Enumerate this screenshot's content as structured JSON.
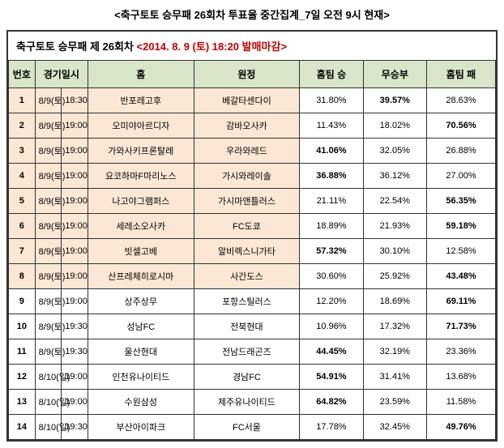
{
  "main_title": "<축구토토 승무패 26회차 투표율 중간집계_7일 오전 9시 현재>",
  "sub_title_prefix": "축구토토 승무패 제 26회차 ",
  "sub_title_deadline": "<2014. 8. 9 (토) 18:20 발매마감>",
  "headers": {
    "num": "번호",
    "datetime": "경기일시",
    "home": "홈",
    "away": "원정",
    "win": "홈팀 승",
    "draw": "무승부",
    "lose": "홈팀 패"
  },
  "rows": [
    {
      "num": "1",
      "date": "8/9(토)",
      "time": "18:30",
      "home": "반포레고후",
      "away": "베갈타센다이",
      "win": "31.80%",
      "draw": "39.57%",
      "lose": "28.63%",
      "bold": "draw",
      "highlighted": true
    },
    {
      "num": "2",
      "date": "8/9(토)",
      "time": "19:00",
      "home": "오미야아르디자",
      "away": "감바오사카",
      "win": "11.43%",
      "draw": "18.02%",
      "lose": "70.56%",
      "bold": "lose",
      "highlighted": true
    },
    {
      "num": "3",
      "date": "8/9(토)",
      "time": "19:00",
      "home": "가와사키프론탈레",
      "away": "우라와레드",
      "win": "41.06%",
      "draw": "32.05%",
      "lose": "26.88%",
      "bold": "win",
      "highlighted": true
    },
    {
      "num": "4",
      "date": "8/9(토)",
      "time": "19:00",
      "home": "요코하마F마리노스",
      "away": "가시와레이솔",
      "win": "36.88%",
      "draw": "36.12%",
      "lose": "27.00%",
      "bold": "win",
      "highlighted": true
    },
    {
      "num": "5",
      "date": "8/9(토)",
      "time": "19:00",
      "home": "나고야그램퍼스",
      "away": "가시마앤틀러스",
      "win": "21.11%",
      "draw": "22.54%",
      "lose": "56.35%",
      "bold": "lose",
      "highlighted": true
    },
    {
      "num": "6",
      "date": "8/9(토)",
      "time": "19:00",
      "home": "세레소오사카",
      "away": "FC도쿄",
      "win": "18.89%",
      "draw": "21.93%",
      "lose": "59.18%",
      "bold": "lose",
      "highlighted": true
    },
    {
      "num": "7",
      "date": "8/9(토)",
      "time": "19:00",
      "home": "빗셀고베",
      "away": "알비렉스니가타",
      "win": "57.32%",
      "draw": "30.10%",
      "lose": "12.58%",
      "bold": "win",
      "highlighted": true
    },
    {
      "num": "8",
      "date": "8/9(토)",
      "time": "19:00",
      "home": "산프레체히로시마",
      "away": "사간도스",
      "win": "30.60%",
      "draw": "25.92%",
      "lose": "43.48%",
      "bold": "lose",
      "highlighted": true
    },
    {
      "num": "9",
      "date": "8/9(토)",
      "time": "19:00",
      "home": "상주상무",
      "away": "포항스틸러스",
      "win": "12.20%",
      "draw": "18.69%",
      "lose": "69.11%",
      "bold": "lose",
      "highlighted": false
    },
    {
      "num": "10",
      "date": "8/9(토)",
      "time": "19:30",
      "home": "성남FC",
      "away": "전북현대",
      "win": "10.96%",
      "draw": "17.32%",
      "lose": "71.73%",
      "bold": "lose",
      "highlighted": false
    },
    {
      "num": "11",
      "date": "8/9(토)",
      "time": "19:30",
      "home": "울산현대",
      "away": "전남드래곤즈",
      "win": "44.45%",
      "draw": "32.19%",
      "lose": "23.36%",
      "bold": "win",
      "highlighted": false
    },
    {
      "num": "12",
      "date": "8/10(일)",
      "time": "19:00",
      "home": "인천유나이티드",
      "away": "경남FC",
      "win": "54.91%",
      "draw": "31.41%",
      "lose": "13.68%",
      "bold": "win",
      "highlighted": false
    },
    {
      "num": "13",
      "date": "8/10(일)",
      "time": "19:00",
      "home": "수원삼성",
      "away": "제주유나이티드",
      "win": "64.82%",
      "draw": "23.59%",
      "lose": "11.58%",
      "bold": "win",
      "highlighted": false
    },
    {
      "num": "14",
      "date": "8/10(일)",
      "time": "19:30",
      "home": "부산아이파크",
      "away": "FC서울",
      "win": "17.78%",
      "draw": "32.45%",
      "lose": "49.76%",
      "bold": "lose",
      "highlighted": false
    }
  ]
}
